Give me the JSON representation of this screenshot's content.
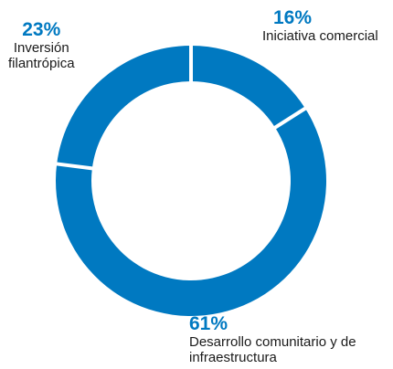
{
  "chart_data": {
    "type": "pie",
    "donut": true,
    "slices": [
      {
        "label": "Iniciativa comercial",
        "value": 16,
        "pct_text": "16%",
        "color": "#0079C1"
      },
      {
        "label": "Desarrollo comunitario y de infraestructura",
        "label_lines": [
          "Desarrollo comunitario y de",
          "infraestructura"
        ],
        "value": 61,
        "pct_text": "61%",
        "color": "#0079C1"
      },
      {
        "label": "Inversión filantrópica",
        "label_lines": [
          "Inversión",
          "filantrópica"
        ],
        "value": 23,
        "pct_text": "23%",
        "color": "#0079C1"
      }
    ],
    "separator_color": "#ffffff",
    "start": "top, clockwise"
  }
}
